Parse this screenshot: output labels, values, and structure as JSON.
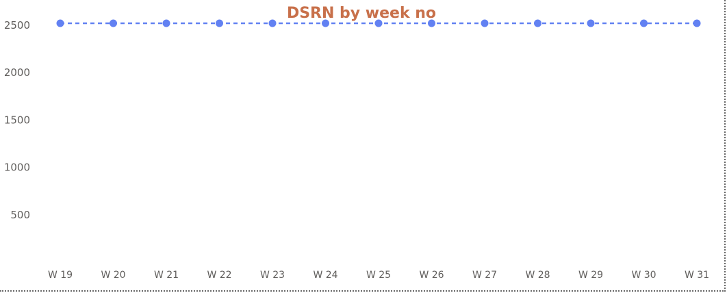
{
  "chart_data": {
    "type": "line",
    "title": "DSRN by week no",
    "xlabel": "",
    "ylabel": "",
    "categories": [
      "W 19",
      "W 20",
      "W 21",
      "W 22",
      "W 23",
      "W 24",
      "W 25",
      "W 26",
      "W 27",
      "W 28",
      "W 29",
      "W 30",
      "W 31"
    ],
    "series": [
      {
        "values": [
          2520,
          2520,
          2520,
          2520,
          2520,
          2520,
          2520,
          2520,
          2520,
          2520,
          2520,
          2520,
          2520
        ],
        "color": "#6281f2",
        "line_style": "dashed",
        "markers": true
      }
    ],
    "yticks": [
      500,
      1000,
      1500,
      2000,
      2500
    ],
    "ylim": [
      0,
      2650
    ],
    "grid": false,
    "legend": "none",
    "title_color": "#c8704a"
  }
}
